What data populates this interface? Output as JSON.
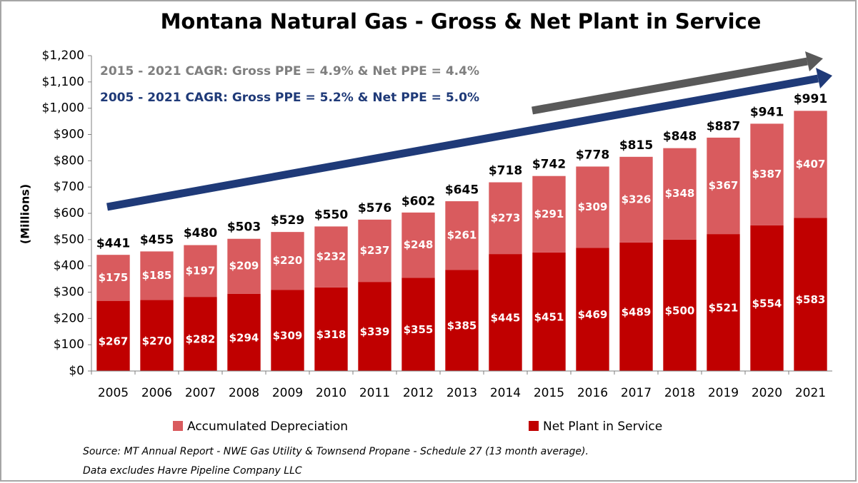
{
  "chart_data": {
    "type": "stacked_bar",
    "title": "Montana Natural Gas - Gross & Net Plant in Service",
    "y_label": "(Millions)",
    "categories": [
      "2005",
      "2006",
      "2007",
      "2008",
      "2009",
      "2010",
      "2011",
      "2012",
      "2013",
      "2014",
      "2015",
      "2016",
      "2017",
      "2018",
      "2019",
      "2020",
      "2021"
    ],
    "series": [
      {
        "name": "Accumulated Depreciation",
        "color": "#d95b5e",
        "values": [
          175,
          185,
          197,
          209,
          220,
          232,
          237,
          248,
          261,
          273,
          291,
          309,
          326,
          348,
          367,
          387,
          407
        ],
        "value_labels": [
          "$175",
          "$185",
          "$197",
          "$209",
          "$220",
          "$232",
          "$237",
          "$248",
          "$261",
          "$273",
          "$291",
          "$309",
          "$326",
          "$348",
          "$367",
          "$387",
          "$407"
        ]
      },
      {
        "name": "Net Plant in Service",
        "color": "#c00000",
        "values": [
          267,
          270,
          282,
          294,
          309,
          318,
          339,
          355,
          385,
          445,
          451,
          469,
          489,
          500,
          521,
          554,
          583
        ],
        "value_labels": [
          "$267",
          "$270",
          "$282",
          "$294",
          "$309",
          "$318",
          "$339",
          "$355",
          "$385",
          "$445",
          "$451",
          "$469",
          "$489",
          "$500",
          "$521",
          "$554",
          "$583"
        ]
      }
    ],
    "totals": [
      441,
      455,
      480,
      503,
      529,
      550,
      576,
      602,
      645,
      718,
      742,
      778,
      815,
      848,
      887,
      941,
      991
    ],
    "total_labels": [
      "$441",
      "$455",
      "$480",
      "$503",
      "$529",
      "$550",
      "$576",
      "$602",
      "$645",
      "$718",
      "$742",
      "$778",
      "$815",
      "$848",
      "$887",
      "$941",
      "$991"
    ],
    "ylim": [
      0,
      1200
    ],
    "yticks": [
      {
        "value": 0,
        "label": "$0"
      },
      {
        "value": 100,
        "label": "$100"
      },
      {
        "value": 200,
        "label": "$200"
      },
      {
        "value": 300,
        "label": "$300"
      },
      {
        "value": 400,
        "label": "$400"
      },
      {
        "value": 500,
        "label": "$500"
      },
      {
        "value": 600,
        "label": "$600"
      },
      {
        "value": 700,
        "label": "$700"
      },
      {
        "value": 800,
        "label": "$800"
      },
      {
        "value": 900,
        "label": "$900"
      },
      {
        "value": 1000,
        "label": "$1,000"
      },
      {
        "value": 1100,
        "label": "$1,100"
      },
      {
        "value": 1200,
        "label": "$1,200"
      }
    ],
    "grid": false,
    "annotations": [
      "2015 - 2021 CAGR:  Gross PPE = 4.9% & Net PPE = 4.4%",
      "2005 - 2021 CAGR:  Gross PPE = 5.2% & Net PPE = 5.0%"
    ],
    "source": [
      "Source:  MT Annual Report - NWE Gas Utility & Townsend Propane - Schedule 27 (13 month average).",
      "Data excludes Havre Pipeline Company LLC"
    ]
  }
}
